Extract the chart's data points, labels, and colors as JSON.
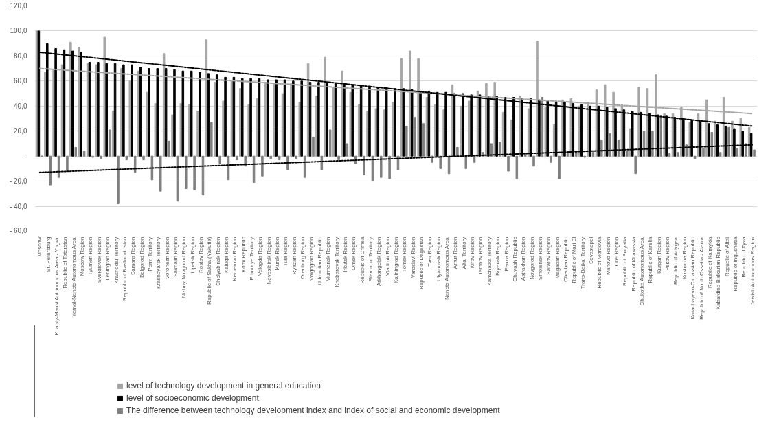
{
  "chart_data": {
    "type": "bar",
    "categories": [
      "Moscow",
      "St. Petersburg",
      "Khanty-Mansi Autonomous Area - Yugra",
      "Republic of Tatarstan",
      "Yamal-Nenets Autonomous Area",
      "Moscow Region",
      "Tyumen Region",
      "Sverdlovsk Region",
      "Leningrad Region",
      "Krasnodar Territory",
      "Republic of Bashkortostan",
      "Samara Region",
      "Belgorod Region",
      "Perm Territory",
      "Krasnoyarsk Territory",
      "Voronezh Region",
      "Sakhalin Region",
      "Nizhny Novgorod Region",
      "Lipetsk Region",
      "Rostov Region",
      "Republic of Sakha (Yakutia)",
      "Chelyabinsk Region",
      "Kaluga Region",
      "Kemerovo Region",
      "Komi Republic",
      "Primorye Territory",
      "Vologda Region",
      "Novosibirsk Region",
      "Kursk Region",
      "Tula Region",
      "Ryazan Region",
      "Orenburg Region",
      "Volgograd Region",
      "Udmurtian Republic",
      "Murmansk Region",
      "Khabarovsk Territory",
      "Irkutsk Region",
      "Omsk Region",
      "Republic of Crimea",
      "Stavropol Territory",
      "Arkhangelsk Region",
      "Vladimir Region",
      "Kaliningrad Region",
      "Tomsk Region",
      "Yaroslavl Region",
      "Republic of Dagestan",
      "Tver Region",
      "Ulyanovsk Region",
      "Nenets Autonomous Area",
      "Amur Region",
      "Altai Territory",
      "Kirov Region",
      "Tambov Region",
      "Kamchatka Territory",
      "Bryansk Region",
      "Penza Region",
      "Chuvash Republic",
      "Astrakhan Region",
      "Novgorod Region",
      "Smolensk Region",
      "Saratov Region",
      "Magadan Region",
      "Chechen Republic",
      "Republic of Mari El",
      "Trans-Baikal Territory",
      "Sevastopol",
      "Republic of Mordovia",
      "Ivanovo Region",
      "Orel Region",
      "Republic of Buryatia",
      "Republic of Khakassia",
      "Chukotka Autonomous Area",
      "Republic of Karelia",
      "Kurgan Region",
      "Pskov Region",
      "Republic of Adygea",
      "Kostroma Region",
      "Karachayevo-Circassian Republic",
      "Republic of North Ossetia - Alania",
      "Republic of Kalmykia",
      "Kabardino-Balkarian Republic",
      "Republic of Altai",
      "Republic of Ingushetia",
      "Republic of Tyva",
      "Jewish Autonomous Region"
    ],
    "series": [
      {
        "name": "level of technology development in general education",
        "color": "#a6a6a6",
        "values": [
          100,
          67,
          69,
          73,
          91,
          87,
          74,
          73,
          95,
          36,
          70,
          60,
          68,
          51,
          42,
          82,
          33,
          42,
          41,
          36,
          93,
          59,
          44,
          60,
          54,
          41,
          46,
          59,
          58,
          50,
          58,
          43,
          74,
          48,
          79,
          55,
          68,
          51,
          41,
          36,
          38,
          37,
          43,
          78,
          84,
          78,
          47,
          41,
          37,
          57,
          40,
          44,
          52,
          58,
          59,
          35,
          29,
          48,
          38,
          92,
          39,
          25,
          45,
          46,
          40,
          43,
          53,
          57,
          51,
          41,
          22,
          55,
          54,
          65,
          34,
          34,
          39,
          27,
          34,
          45,
          28,
          47,
          28,
          30,
          23
        ]
      },
      {
        "name": "level of socioeconomic development",
        "color": "#000000",
        "values": [
          100,
          90,
          86,
          85,
          84,
          83,
          75,
          75,
          74,
          74,
          73,
          73,
          71,
          70,
          70,
          70,
          69,
          68,
          68,
          67,
          66,
          65,
          63,
          63,
          62,
          62,
          62,
          61,
          61,
          61,
          60,
          60,
          59,
          59,
          58,
          58,
          58,
          57,
          56,
          56,
          55,
          55,
          54,
          54,
          53,
          52,
          52,
          51,
          51,
          50,
          50,
          49,
          49,
          48,
          48,
          47,
          47,
          46,
          46,
          45,
          44,
          43,
          43,
          42,
          41,
          40,
          40,
          39,
          38,
          37,
          36,
          35,
          34,
          33,
          32,
          31,
          30,
          29,
          28,
          26,
          25,
          24,
          22,
          20,
          18
        ]
      },
      {
        "name": "The difference between technology development index and index of social and economic development",
        "color": "#7f7f7f",
        "values": [
          0,
          -23,
          -17,
          -12,
          7,
          4,
          -1,
          -2,
          21,
          -38,
          -3,
          -13,
          -3,
          -19,
          -28,
          12,
          -36,
          -26,
          -27,
          -31,
          27,
          -6,
          -19,
          -3,
          -8,
          -21,
          -16,
          -2,
          -3,
          -11,
          -2,
          -17,
          15,
          -11,
          21,
          -3,
          10,
          -6,
          -15,
          -20,
          -17,
          -18,
          -11,
          24,
          31,
          26,
          -5,
          -10,
          -14,
          7,
          -10,
          -5,
          3,
          10,
          11,
          -12,
          -18,
          2,
          -8,
          47,
          -5,
          -18,
          2,
          4,
          -1,
          3,
          13,
          18,
          13,
          4,
          -14,
          20,
          20,
          32,
          2,
          3,
          9,
          -2,
          6,
          19,
          3,
          23,
          6,
          10,
          5
        ]
      },
      {
        "type": "line",
        "color": "#a6a6a6",
        "line_style": "dashed",
        "x": [
          "Moscow",
          "Jewish Autonomous Region"
        ],
        "values": [
          70,
          34
        ]
      },
      {
        "type": "line",
        "color": "#000000",
        "line_style": "dashed",
        "x": [
          "Moscow",
          "Jewish Autonomous Region"
        ],
        "values": [
          83,
          24
        ]
      },
      {
        "type": "line",
        "color": "#000000",
        "line_style": "dotted",
        "x": [
          "Moscow",
          "Jewish Autonomous Region"
        ],
        "values": [
          -13,
          9
        ]
      }
    ],
    "ylim": [
      -60,
      120
    ],
    "yticks": [
      {
        "value": -60,
        "label": "- 60,0"
      },
      {
        "value": -40,
        "label": "- 40,0"
      },
      {
        "value": -20,
        "label": "- 20,0"
      },
      {
        "value": 0,
        "label": "-"
      },
      {
        "value": 20,
        "label": "20,0"
      },
      {
        "value": 40,
        "label": "40,0"
      },
      {
        "value": 60,
        "label": "60,0"
      },
      {
        "value": 80,
        "label": "80,0"
      },
      {
        "value": 100,
        "label": "100,0"
      },
      {
        "value": 120,
        "label": "120,0"
      }
    ],
    "grid": "y",
    "legend": "bottom"
  }
}
